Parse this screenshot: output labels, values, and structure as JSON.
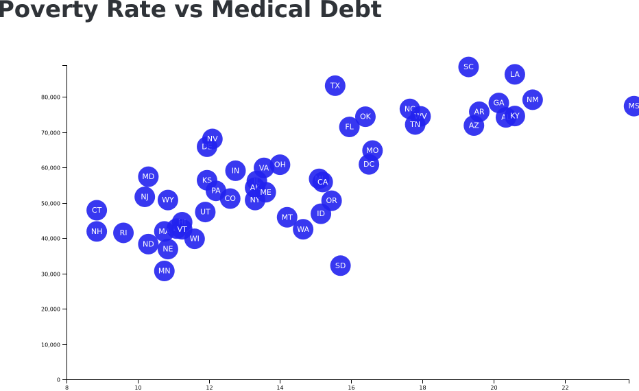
{
  "chart_data": {
    "type": "scatter",
    "title": "Poverty Rate vs Medical Debt",
    "xlabel": "",
    "ylabel": "",
    "xlim": [
      8,
      23.8
    ],
    "ylim": [
      0,
      89000
    ],
    "grid": false,
    "colors": {
      "point": "#2222ee",
      "label": "#ffffff",
      "title": "#2f3338"
    },
    "x_ticks": [
      {
        "value": 8,
        "label": "8"
      },
      {
        "value": 10,
        "label": "10"
      },
      {
        "value": 12,
        "label": "12"
      },
      {
        "value": 14,
        "label": "14"
      },
      {
        "value": 16,
        "label": "16"
      },
      {
        "value": 18,
        "label": "18"
      },
      {
        "value": 20,
        "label": "20"
      },
      {
        "value": 22,
        "label": "22"
      }
    ],
    "y_ticks": [
      {
        "value": 0,
        "label": "0"
      },
      {
        "value": 10000,
        "label": "10,000"
      },
      {
        "value": 20000,
        "label": "20,000"
      },
      {
        "value": 30000,
        "label": "30,000"
      },
      {
        "value": 40000,
        "label": "40,000"
      },
      {
        "value": 50000,
        "label": "50,000"
      },
      {
        "value": 60000,
        "label": "60,000"
      },
      {
        "value": 70000,
        "label": "70,000"
      },
      {
        "value": 80000,
        "label": "80,000"
      }
    ],
    "points": [
      {
        "label": "CT",
        "x": 8.85,
        "y": 47900
      },
      {
        "label": "NH",
        "x": 8.85,
        "y": 41900
      },
      {
        "label": "RI",
        "x": 9.6,
        "y": 41500
      },
      {
        "label": "NJ",
        "x": 10.2,
        "y": 51700
      },
      {
        "label": "MD",
        "x": 10.3,
        "y": 57400
      },
      {
        "label": "ND",
        "x": 10.3,
        "y": 38300
      },
      {
        "label": "WY",
        "x": 10.85,
        "y": 50800
      },
      {
        "label": "MA",
        "x": 10.75,
        "y": 41900
      },
      {
        "label": "NE",
        "x": 10.85,
        "y": 36900
      },
      {
        "label": "MN",
        "x": 10.75,
        "y": 30700
      },
      {
        "label": "IA",
        "x": 11.1,
        "y": 42700
      },
      {
        "label": "HI",
        "x": 11.25,
        "y": 44500
      },
      {
        "label": "VT",
        "x": 11.25,
        "y": 42500
      },
      {
        "label": "WI",
        "x": 11.6,
        "y": 39800
      },
      {
        "label": "UT",
        "x": 11.9,
        "y": 47400
      },
      {
        "label": "KS",
        "x": 11.95,
        "y": 56400
      },
      {
        "label": "DE",
        "x": 11.95,
        "y": 65900
      },
      {
        "label": "NV",
        "x": 12.1,
        "y": 68100
      },
      {
        "label": "PA",
        "x": 12.2,
        "y": 53400
      },
      {
        "label": "CO",
        "x": 12.6,
        "y": 51200
      },
      {
        "label": "IN",
        "x": 12.75,
        "y": 59100
      },
      {
        "label": "IL",
        "x": 13.35,
        "y": 56200
      },
      {
        "label": "AK",
        "x": 13.3,
        "y": 54300
      },
      {
        "label": "NY",
        "x": 13.3,
        "y": 50800
      },
      {
        "label": "ME",
        "x": 13.6,
        "y": 53000
      },
      {
        "label": "VA",
        "x": 13.55,
        "y": 59900
      },
      {
        "label": "OH",
        "x": 14.0,
        "y": 60800
      },
      {
        "label": "MT",
        "x": 14.2,
        "y": 45900
      },
      {
        "label": "WA",
        "x": 14.65,
        "y": 42500
      },
      {
        "label": "MI",
        "x": 15.1,
        "y": 56800
      },
      {
        "label": "CA",
        "x": 15.2,
        "y": 55900
      },
      {
        "label": "OR",
        "x": 15.45,
        "y": 50600
      },
      {
        "label": "ID",
        "x": 15.15,
        "y": 46900
      },
      {
        "label": "TX",
        "x": 15.55,
        "y": 83200
      },
      {
        "label": "SD",
        "x": 15.7,
        "y": 32200
      },
      {
        "label": "FL",
        "x": 15.95,
        "y": 71500
      },
      {
        "label": "OK",
        "x": 16.4,
        "y": 74400
      },
      {
        "label": "MO",
        "x": 16.6,
        "y": 64800
      },
      {
        "label": "DC",
        "x": 16.5,
        "y": 60900
      },
      {
        "label": "NC",
        "x": 17.65,
        "y": 76600
      },
      {
        "label": "WV",
        "x": 17.95,
        "y": 74500
      },
      {
        "label": "TN",
        "x": 17.8,
        "y": 72200
      },
      {
        "label": "SC",
        "x": 19.3,
        "y": 88500
      },
      {
        "label": "AZ",
        "x": 19.45,
        "y": 71900
      },
      {
        "label": "AR",
        "x": 19.6,
        "y": 75800
      },
      {
        "label": "GA",
        "x": 20.15,
        "y": 78300
      },
      {
        "label": "LA",
        "x": 20.6,
        "y": 86400
      },
      {
        "label": "AL",
        "x": 20.35,
        "y": 74200
      },
      {
        "label": "KY",
        "x": 20.6,
        "y": 74600
      },
      {
        "label": "NM",
        "x": 21.1,
        "y": 79200
      },
      {
        "label": "MS",
        "x": 23.95,
        "y": 77400
      }
    ]
  }
}
